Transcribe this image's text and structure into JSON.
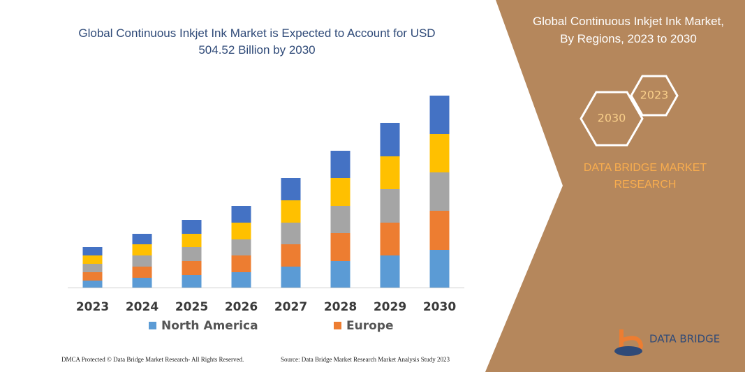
{
  "chart_data": {
    "type": "bar",
    "stacked": true,
    "title": "Global Continuous Inkjet Ink Market is Expected to Account for USD 504.52 Billion by 2030",
    "categories": [
      "2023",
      "2024",
      "2025",
      "2026",
      "2027",
      "2028",
      "2029",
      "2030"
    ],
    "series": [
      {
        "name": "North America",
        "color": "#5b9bd5",
        "values": [
          10,
          14,
          18,
          22,
          30,
          38,
          46,
          54
        ]
      },
      {
        "name": "Europe",
        "color": "#ed7d31",
        "values": [
          12,
          16,
          20,
          24,
          32,
          40,
          47,
          56
        ]
      },
      {
        "color": "#a5a5a5",
        "values": [
          12,
          16,
          20,
          23,
          31,
          39,
          48,
          55
        ]
      },
      {
        "color": "#ffc000",
        "values": [
          12,
          16,
          19,
          24,
          32,
          40,
          47,
          55
        ]
      },
      {
        "color": "#4472c4",
        "values": [
          12,
          15,
          20,
          24,
          32,
          39,
          48,
          55
        ]
      }
    ]
  },
  "side_panel": {
    "title": "Global Continuous Inkjet Ink Market, By Regions, 2023 to 2030",
    "year_start": "2023",
    "year_end": "2030",
    "brand": "DATA BRIDGE MARKET RESEARCH"
  },
  "logo": {
    "text": "DATA BRIDGE"
  },
  "footer": {
    "left": "DMCA Protected © Data Bridge Market Research- All Rights Reserved.",
    "right": "Source: Data Bridge Market Research Market Analysis Study 2023"
  }
}
